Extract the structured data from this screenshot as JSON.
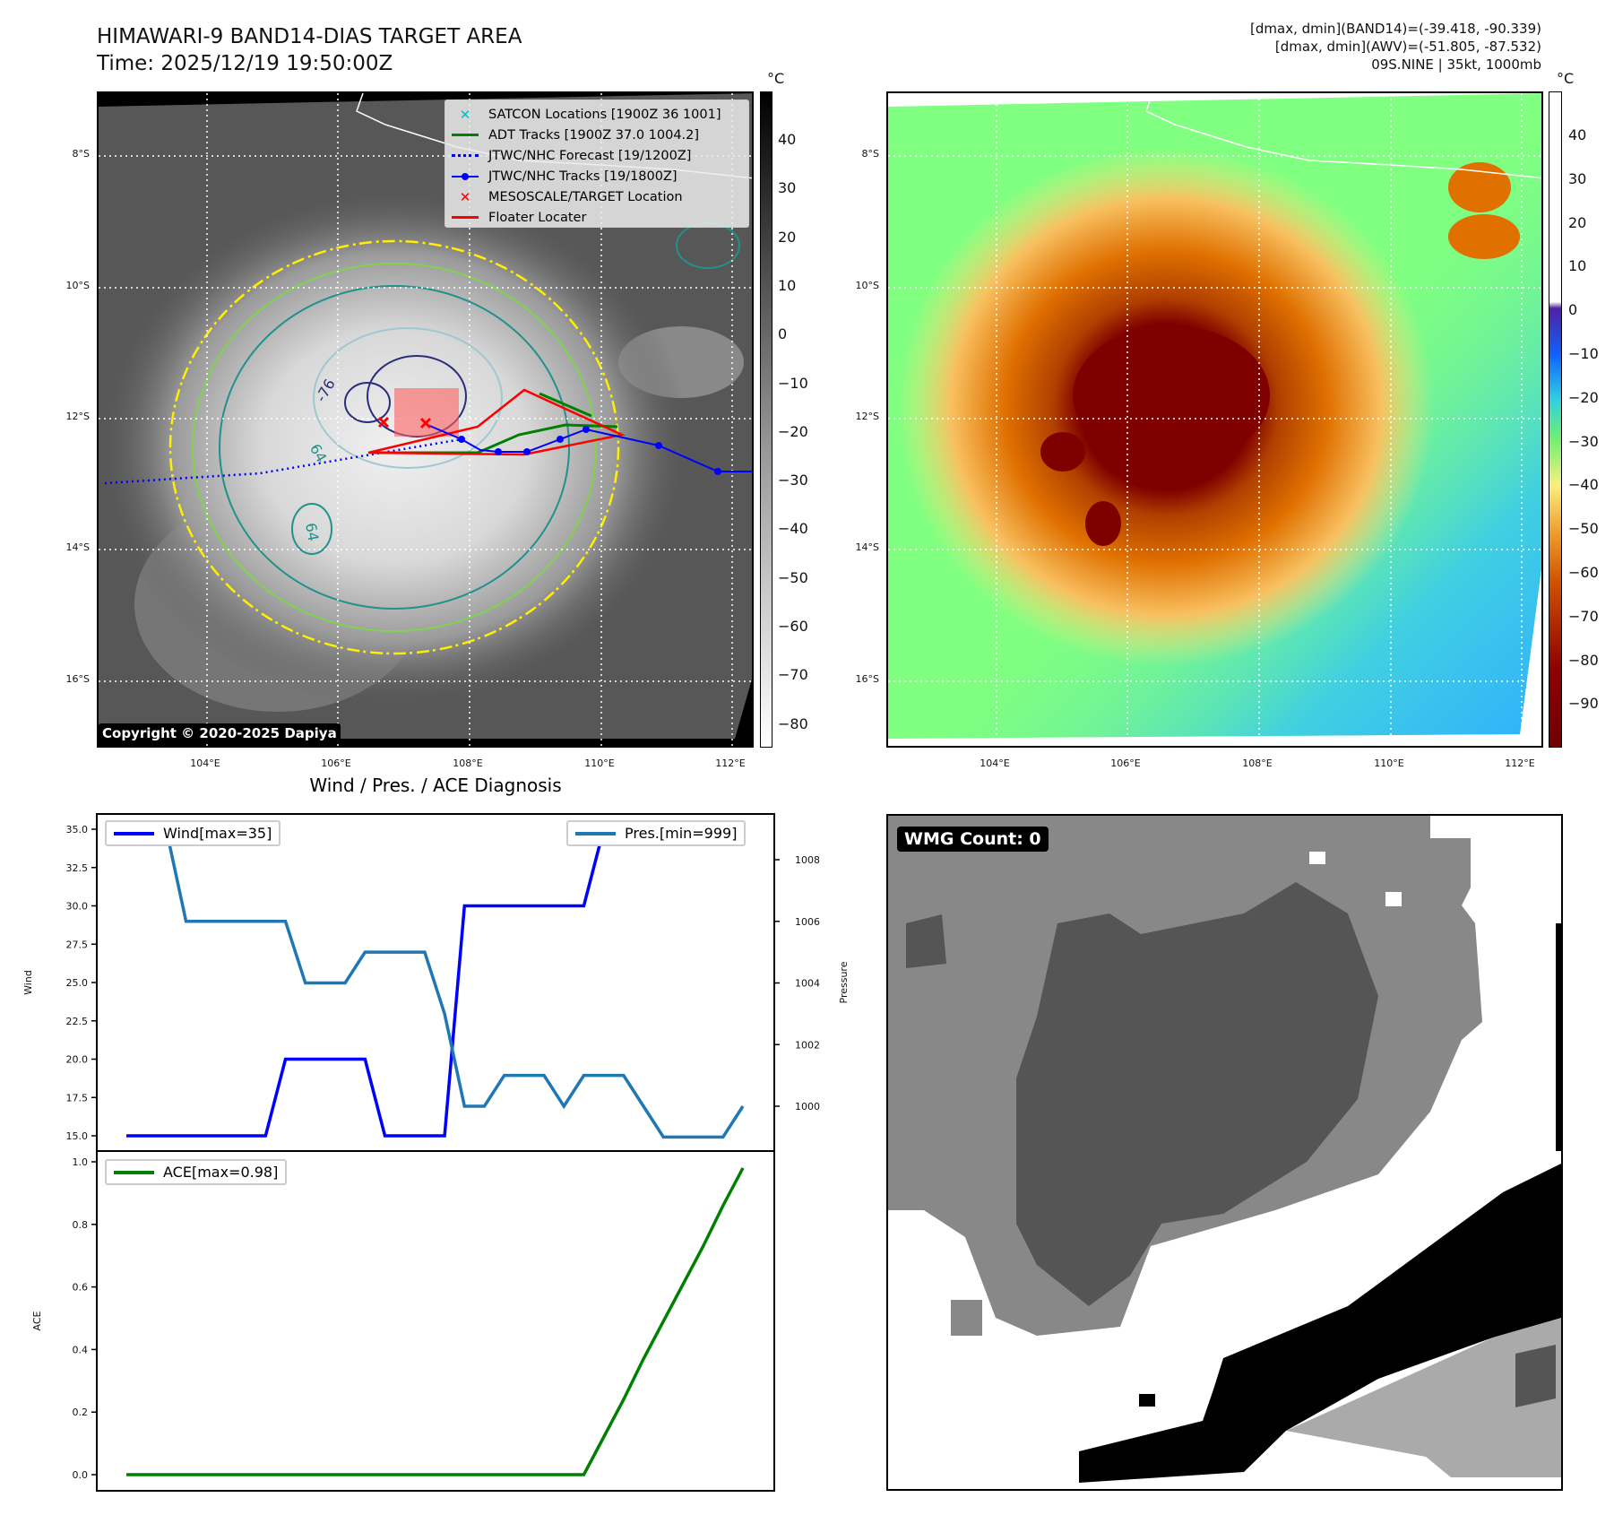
{
  "header": {
    "title_line1": "HIMAWARI-9 BAND14-DIAS TARGET AREA",
    "title_line2": "Time: 2025/12/19 19:50:00Z",
    "info_line1": "[dmax, dmin](BAND14)=(-39.418, -90.339)",
    "info_line2": "[dmax, dmin](AWV)=(-51.805, -87.532)",
    "info_line3": "09S.NINE | 35kt, 1000mb"
  },
  "maps": {
    "lon_labels": [
      "104°E",
      "106°E",
      "108°E",
      "110°E",
      "112°E"
    ],
    "lat_labels": [
      "8°S",
      "10°S",
      "12°S",
      "14°S",
      "16°S"
    ],
    "contour_labels": [
      "-76",
      "64",
      "64"
    ],
    "copyright": "Copyright © 2020-2025 Dapiya",
    "legend": [
      {
        "label": "SATCON Locations [1900Z 36 1001]",
        "color": "#00c0c0",
        "icon": "x-marker-icon"
      },
      {
        "label": "ADT Tracks [1900Z 37.0 1004.2]",
        "color": "#008000",
        "icon": "solid-line-icon"
      },
      {
        "label": "JTWC/NHC Forecast [19/1200Z]",
        "color": "#0000ff",
        "icon": "dotted-line-icon"
      },
      {
        "label": "JTWC/NHC Tracks [19/1800Z]",
        "color": "#0000ff",
        "icon": "line-dot-icon"
      },
      {
        "label": "MESOSCALE/TARGET Location",
        "color": "#ff0000",
        "icon": "x-marker-icon"
      },
      {
        "label": "Floater Locater",
        "color": "#ff0000",
        "icon": "solid-line-icon"
      }
    ],
    "colorbar1": {
      "unit": "°C",
      "ticks": [
        "40",
        "30",
        "20",
        "10",
        "0",
        "−10",
        "−20",
        "−30",
        "−40",
        "−50",
        "−60",
        "−70",
        "−80"
      ]
    },
    "colorbar2": {
      "unit": "°C",
      "ticks": [
        "40",
        "30",
        "20",
        "10",
        "0",
        "−10",
        "−20",
        "−30",
        "−40",
        "−50",
        "−60",
        "−70",
        "−80",
        "−90"
      ]
    }
  },
  "wmg": {
    "badge": "WMG Count: 0"
  },
  "chart_data": [
    {
      "type": "line",
      "title": "Wind / Pres. / ACE Diagnosis",
      "ylabel": "Wind",
      "y2label": "Pressure",
      "ylim": [
        14.5,
        35.5
      ],
      "y2lim": [
        999,
        1009
      ],
      "yticks": [
        "15.0",
        "17.5",
        "20.0",
        "22.5",
        "25.0",
        "27.5",
        "30.0",
        "32.5",
        "35.0"
      ],
      "y2ticks": [
        "1000",
        "1002",
        "1004",
        "1006",
        "1008"
      ],
      "x": [
        0,
        1,
        2,
        3,
        4,
        5,
        6,
        7,
        8,
        9,
        10,
        11,
        12,
        13,
        14,
        15,
        16,
        17,
        18,
        19,
        20,
        21,
        22,
        23,
        24,
        25,
        26,
        27,
        28,
        29,
        30,
        31
      ],
      "series": [
        {
          "name": "Wind[max=35]",
          "color": "#0000ff",
          "axis": "left",
          "values": [
            15,
            15,
            15,
            15,
            15,
            15,
            15,
            15,
            20,
            20,
            20,
            20,
            20,
            15,
            15,
            15,
            15,
            30,
            30,
            30,
            30,
            30,
            30,
            30,
            35,
            35,
            35,
            35,
            35,
            35,
            35,
            35
          ]
        },
        {
          "name": "Pres.[min=999]",
          "color": "#1f77b4",
          "axis": "right",
          "values": [
            1009,
            1009,
            1009,
            1006,
            1006,
            1006,
            1006,
            1006,
            1006,
            1004,
            1004,
            1004,
            1005,
            1005,
            1005,
            1005,
            1003,
            1000,
            1000,
            1001,
            1001,
            1001,
            1000,
            1001,
            1001,
            1001,
            1000,
            999,
            999,
            999,
            999,
            1000
          ]
        }
      ]
    },
    {
      "type": "line",
      "ylabel": "ACE",
      "ylim": [
        -0.05,
        1.03
      ],
      "yticks": [
        "0.0",
        "0.2",
        "0.4",
        "0.6",
        "0.8",
        "1.0"
      ],
      "x": [
        0,
        1,
        2,
        3,
        4,
        5,
        6,
        7,
        8,
        9,
        10,
        11,
        12,
        13,
        14,
        15,
        16,
        17,
        18,
        19,
        20,
        21,
        22,
        23,
        24,
        25,
        26,
        27,
        28,
        29,
        30,
        31
      ],
      "series": [
        {
          "name": "ACE[max=0.98]",
          "color": "#008000",
          "values": [
            0,
            0,
            0,
            0,
            0,
            0,
            0,
            0,
            0,
            0,
            0,
            0,
            0,
            0,
            0,
            0,
            0,
            0,
            0,
            0,
            0,
            0,
            0,
            0,
            0.12,
            0.24,
            0.37,
            0.49,
            0.61,
            0.73,
            0.86,
            0.98
          ]
        }
      ]
    }
  ]
}
